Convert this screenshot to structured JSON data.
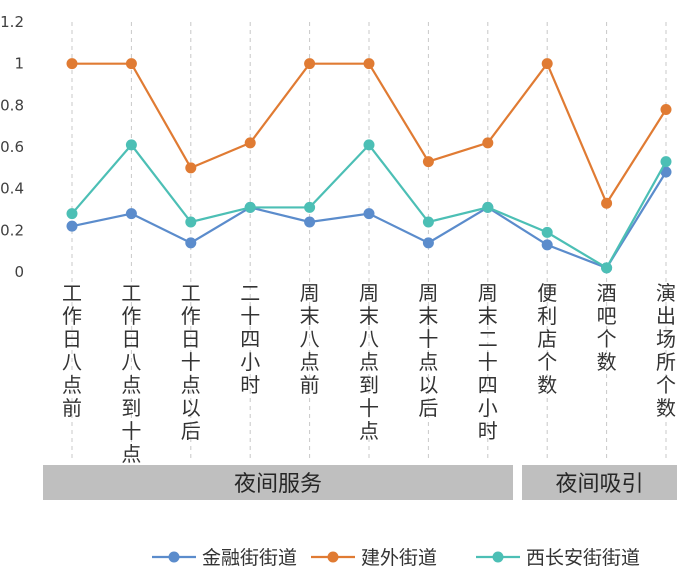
{
  "chart_data": {
    "type": "line",
    "title": "",
    "xlabel": "",
    "ylabel": "",
    "ylim": [
      0,
      1.2
    ],
    "yticks": [
      "0",
      "0.2",
      "0.4",
      "0.6",
      "0.8",
      "1",
      "1.2"
    ],
    "categories": [
      "工作日八点前",
      "工作日八点到十点",
      "工作日十点以后",
      "二十四小时",
      "周末八点前",
      "周末八点到十点",
      "周末十点以后",
      "周末二十四小时",
      "便利店个数",
      "酒吧个数",
      "演出场所个数"
    ],
    "series": [
      {
        "name": "金融街街道",
        "color": "#5b8ccc",
        "values": [
          0.22,
          0.28,
          0.14,
          0.31,
          0.24,
          0.28,
          0.14,
          0.31,
          0.13,
          0.02,
          0.48
        ]
      },
      {
        "name": "建外街道",
        "color": "#e07b33",
        "values": [
          1.0,
          1.0,
          0.5,
          0.62,
          1.0,
          1.0,
          0.53,
          0.62,
          1.0,
          0.33,
          0.78
        ]
      },
      {
        "name": "西长安街街道",
        "color": "#4cbfb5",
        "values": [
          0.28,
          0.61,
          0.24,
          0.31,
          0.31,
          0.61,
          0.24,
          0.31,
          0.19,
          0.02,
          0.53
        ]
      }
    ],
    "groups": [
      {
        "label": "夜间服务",
        "span": 8
      },
      {
        "label": "夜间吸引",
        "span": 3
      }
    ],
    "legend_position": "bottom",
    "grid": true
  }
}
